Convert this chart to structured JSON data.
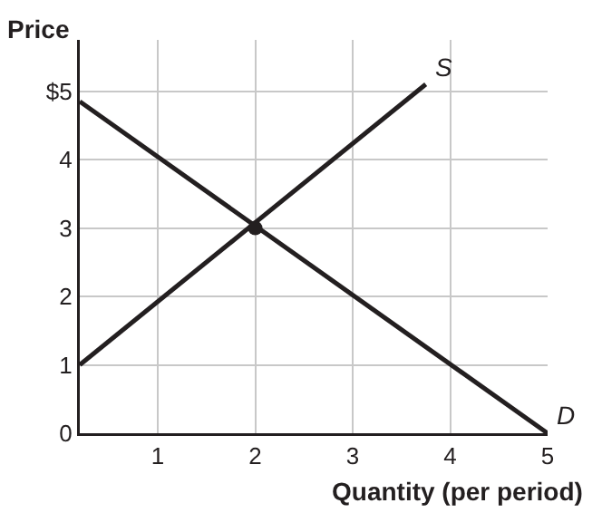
{
  "chart_data": {
    "type": "line",
    "xlabel": "Quantity (per period)",
    "ylabel": "Price",
    "series": [
      {
        "name": "S",
        "color": "#231f20",
        "x": [
          0.2,
          3.75
        ],
        "values": [
          1,
          5.1
        ]
      },
      {
        "name": "D",
        "color": "#231f20",
        "x": [
          0.2,
          5
        ],
        "values": [
          4.85,
          0
        ]
      },
      {
        "type": "scatter",
        "marker": "circle",
        "color": "#231f20",
        "x": [
          2
        ],
        "values": [
          3
        ]
      }
    ],
    "xlim": [
      0.2,
      5
    ],
    "ylim": [
      0,
      5.75
    ],
    "xticks": [
      1,
      2,
      3,
      4,
      5
    ],
    "yticks": [
      0,
      1,
      2,
      3,
      4,
      {
        "value": 5,
        "label": "$5"
      }
    ],
    "grid": true,
    "legend": false,
    "marker": "none",
    "line_style": "solid"
  }
}
